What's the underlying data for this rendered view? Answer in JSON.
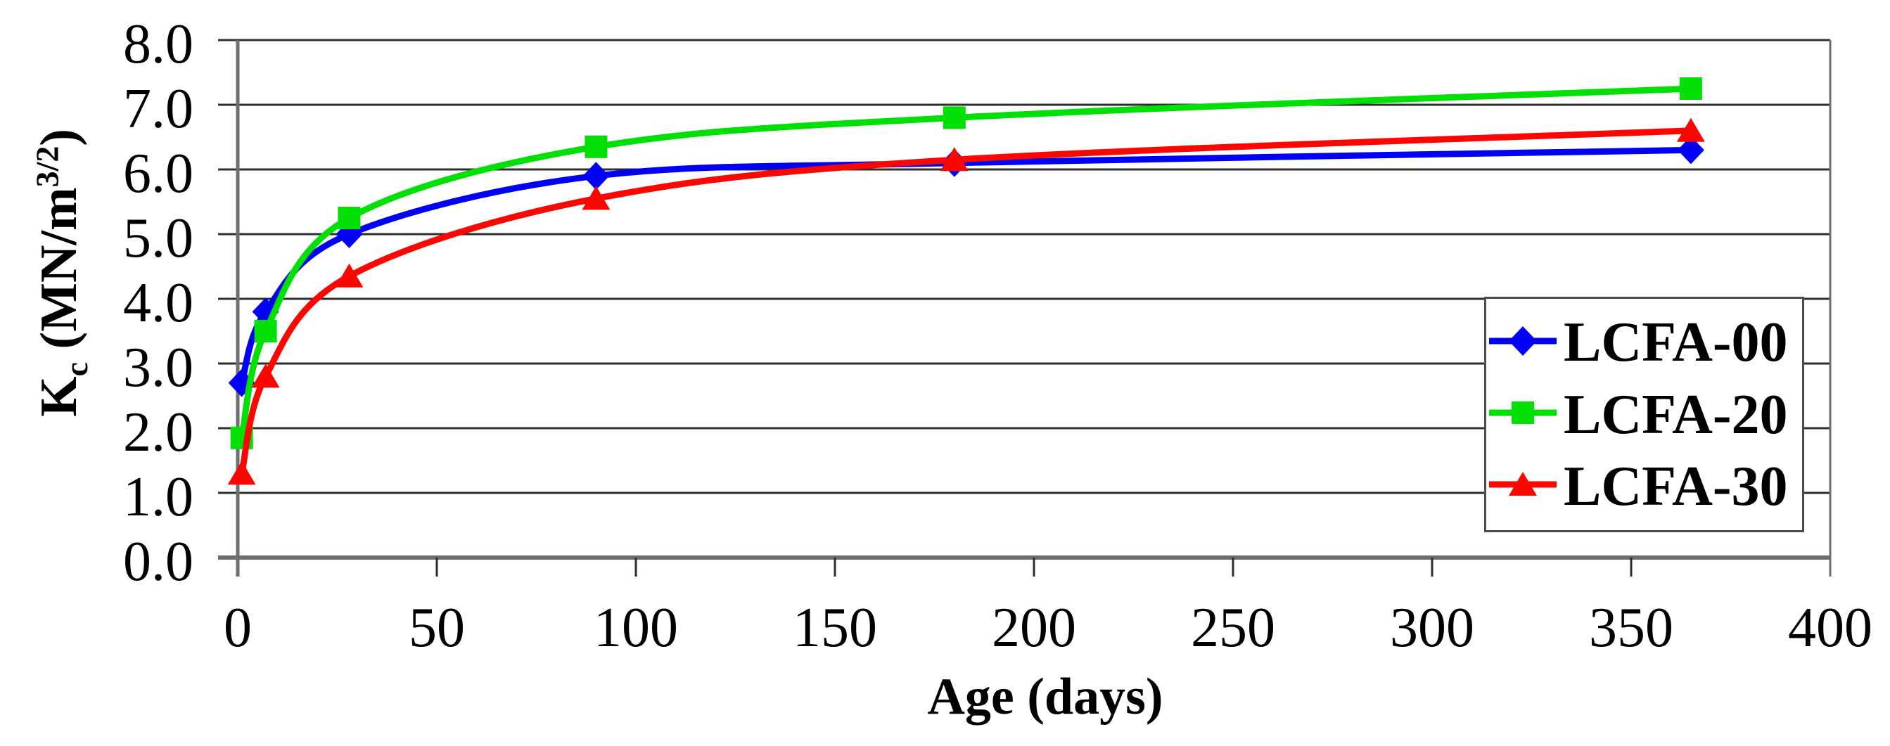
{
  "chart_data": {
    "type": "line",
    "title": "",
    "x_title": "Age (days)",
    "y_title": {
      "base": "K",
      "sub": "c",
      "mid": " (MN/m",
      "sup": "3/2",
      "end": ")"
    },
    "xlabel_unit": "days",
    "xlim": [
      0,
      400
    ],
    "ylim": [
      0.0,
      8.0
    ],
    "x_tick_labels": [
      "0",
      "50",
      "100",
      "150",
      "200",
      "250",
      "300",
      "350",
      "400"
    ],
    "x_tick_values": [
      0,
      50,
      100,
      150,
      200,
      250,
      300,
      350,
      400
    ],
    "y_tick_labels": [
      "0.0",
      "1.0",
      "2.0",
      "3.0",
      "4.0",
      "5.0",
      "6.0",
      "7.0",
      "8.0"
    ],
    "y_tick_values": [
      0,
      1,
      2,
      3,
      4,
      5,
      6,
      7,
      8
    ],
    "grid": "horizontal",
    "legend_position": "inside-right",
    "line_style": "smooth",
    "x": [
      1,
      7,
      28,
      90,
      180,
      365
    ],
    "series": [
      {
        "name": "LCFA-00",
        "color": "#0000f5",
        "marker": "diamond",
        "values": [
          2.7,
          3.8,
          5.0,
          5.9,
          6.1,
          6.3
        ]
      },
      {
        "name": "LCFA-20",
        "color": "#00e004",
        "marker": "square",
        "values": [
          1.85,
          3.5,
          5.25,
          6.35,
          6.8,
          7.25
        ]
      },
      {
        "name": "LCFA-30",
        "color": "#fb0600",
        "marker": "triangle",
        "values": [
          1.3,
          2.8,
          4.35,
          5.55,
          6.15,
          6.6
        ]
      }
    ]
  },
  "colors": {
    "gridline": "#2e2e2e",
    "axis": "#6e6e6e",
    "legend_border": "#4c4c4c",
    "text": "#000000",
    "background": "#ffffff"
  }
}
